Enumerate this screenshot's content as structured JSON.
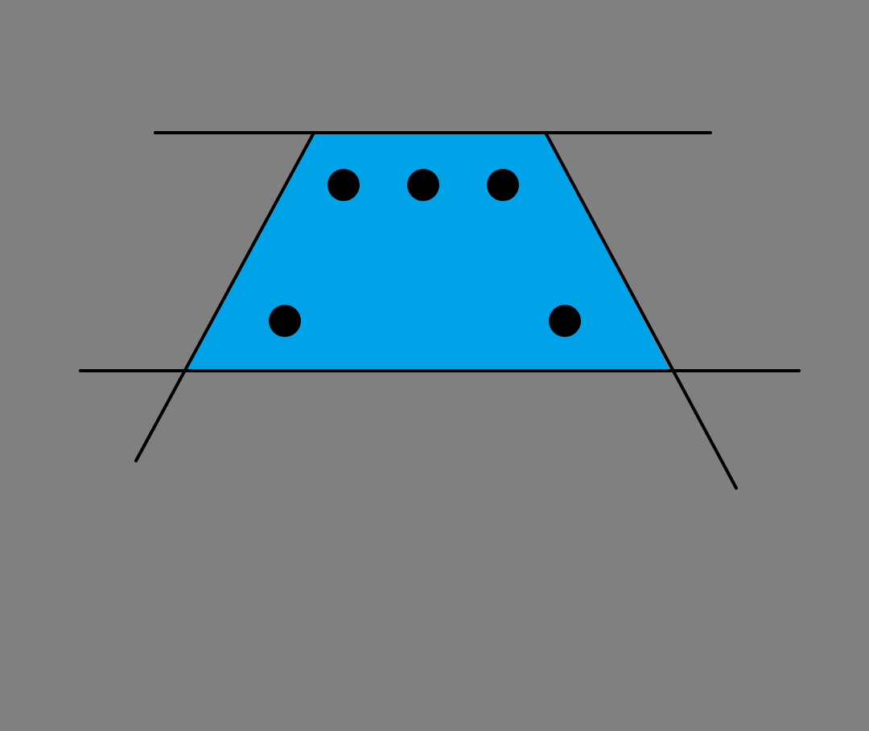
{
  "colors": {
    "background": "#808080",
    "trapezoid_fill": "#00A2E8",
    "line": "#000000",
    "dot": "#000000"
  },
  "shapes": {
    "trapezoid": "trapezoid",
    "top_line": "line",
    "bottom_line": "line",
    "left_line": "line",
    "right_line": "line"
  },
  "dots": {
    "top_row_count": 3,
    "bottom_row_count": 2,
    "total": 5
  }
}
